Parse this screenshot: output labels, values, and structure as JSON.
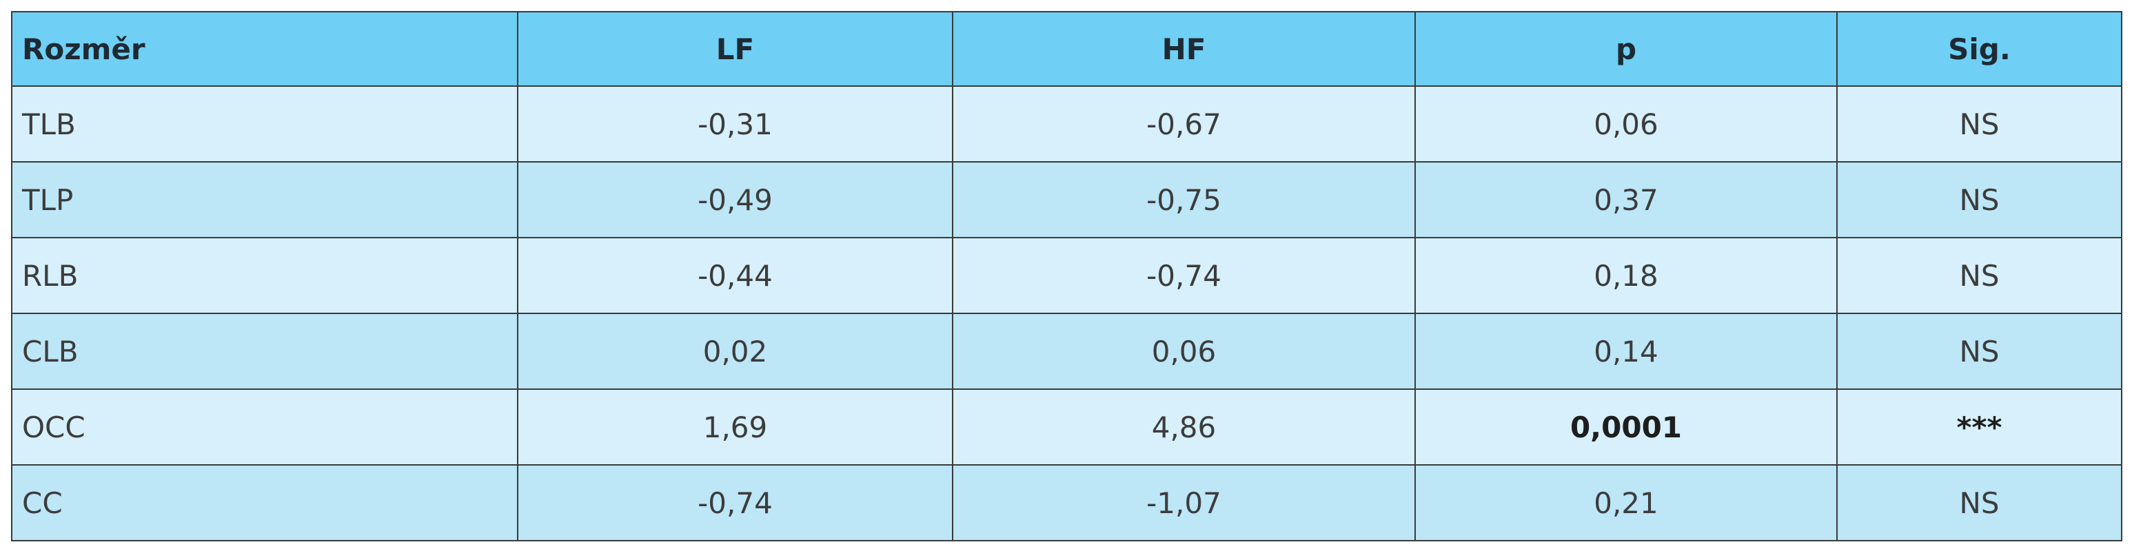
{
  "table": {
    "header": [
      "Rozměr",
      "LF",
      "HF",
      "p",
      "Sig."
    ],
    "rows": [
      [
        "TLB",
        "-0,31",
        "-0,67",
        "0,06",
        "NS"
      ],
      [
        "TLP",
        "-0,49",
        "-0,75",
        "0,37",
        "NS"
      ],
      [
        "RLB",
        "-0,44",
        "-0,74",
        "0,18",
        "NS"
      ],
      [
        "CLB",
        "0,02",
        "0,06",
        "0,14",
        "NS"
      ],
      [
        "OCC",
        "1,69",
        "4,86",
        "0,0001",
        "***"
      ],
      [
        "CC",
        "-0,74",
        "-1,07",
        "0,21",
        "NS"
      ]
    ]
  }
}
